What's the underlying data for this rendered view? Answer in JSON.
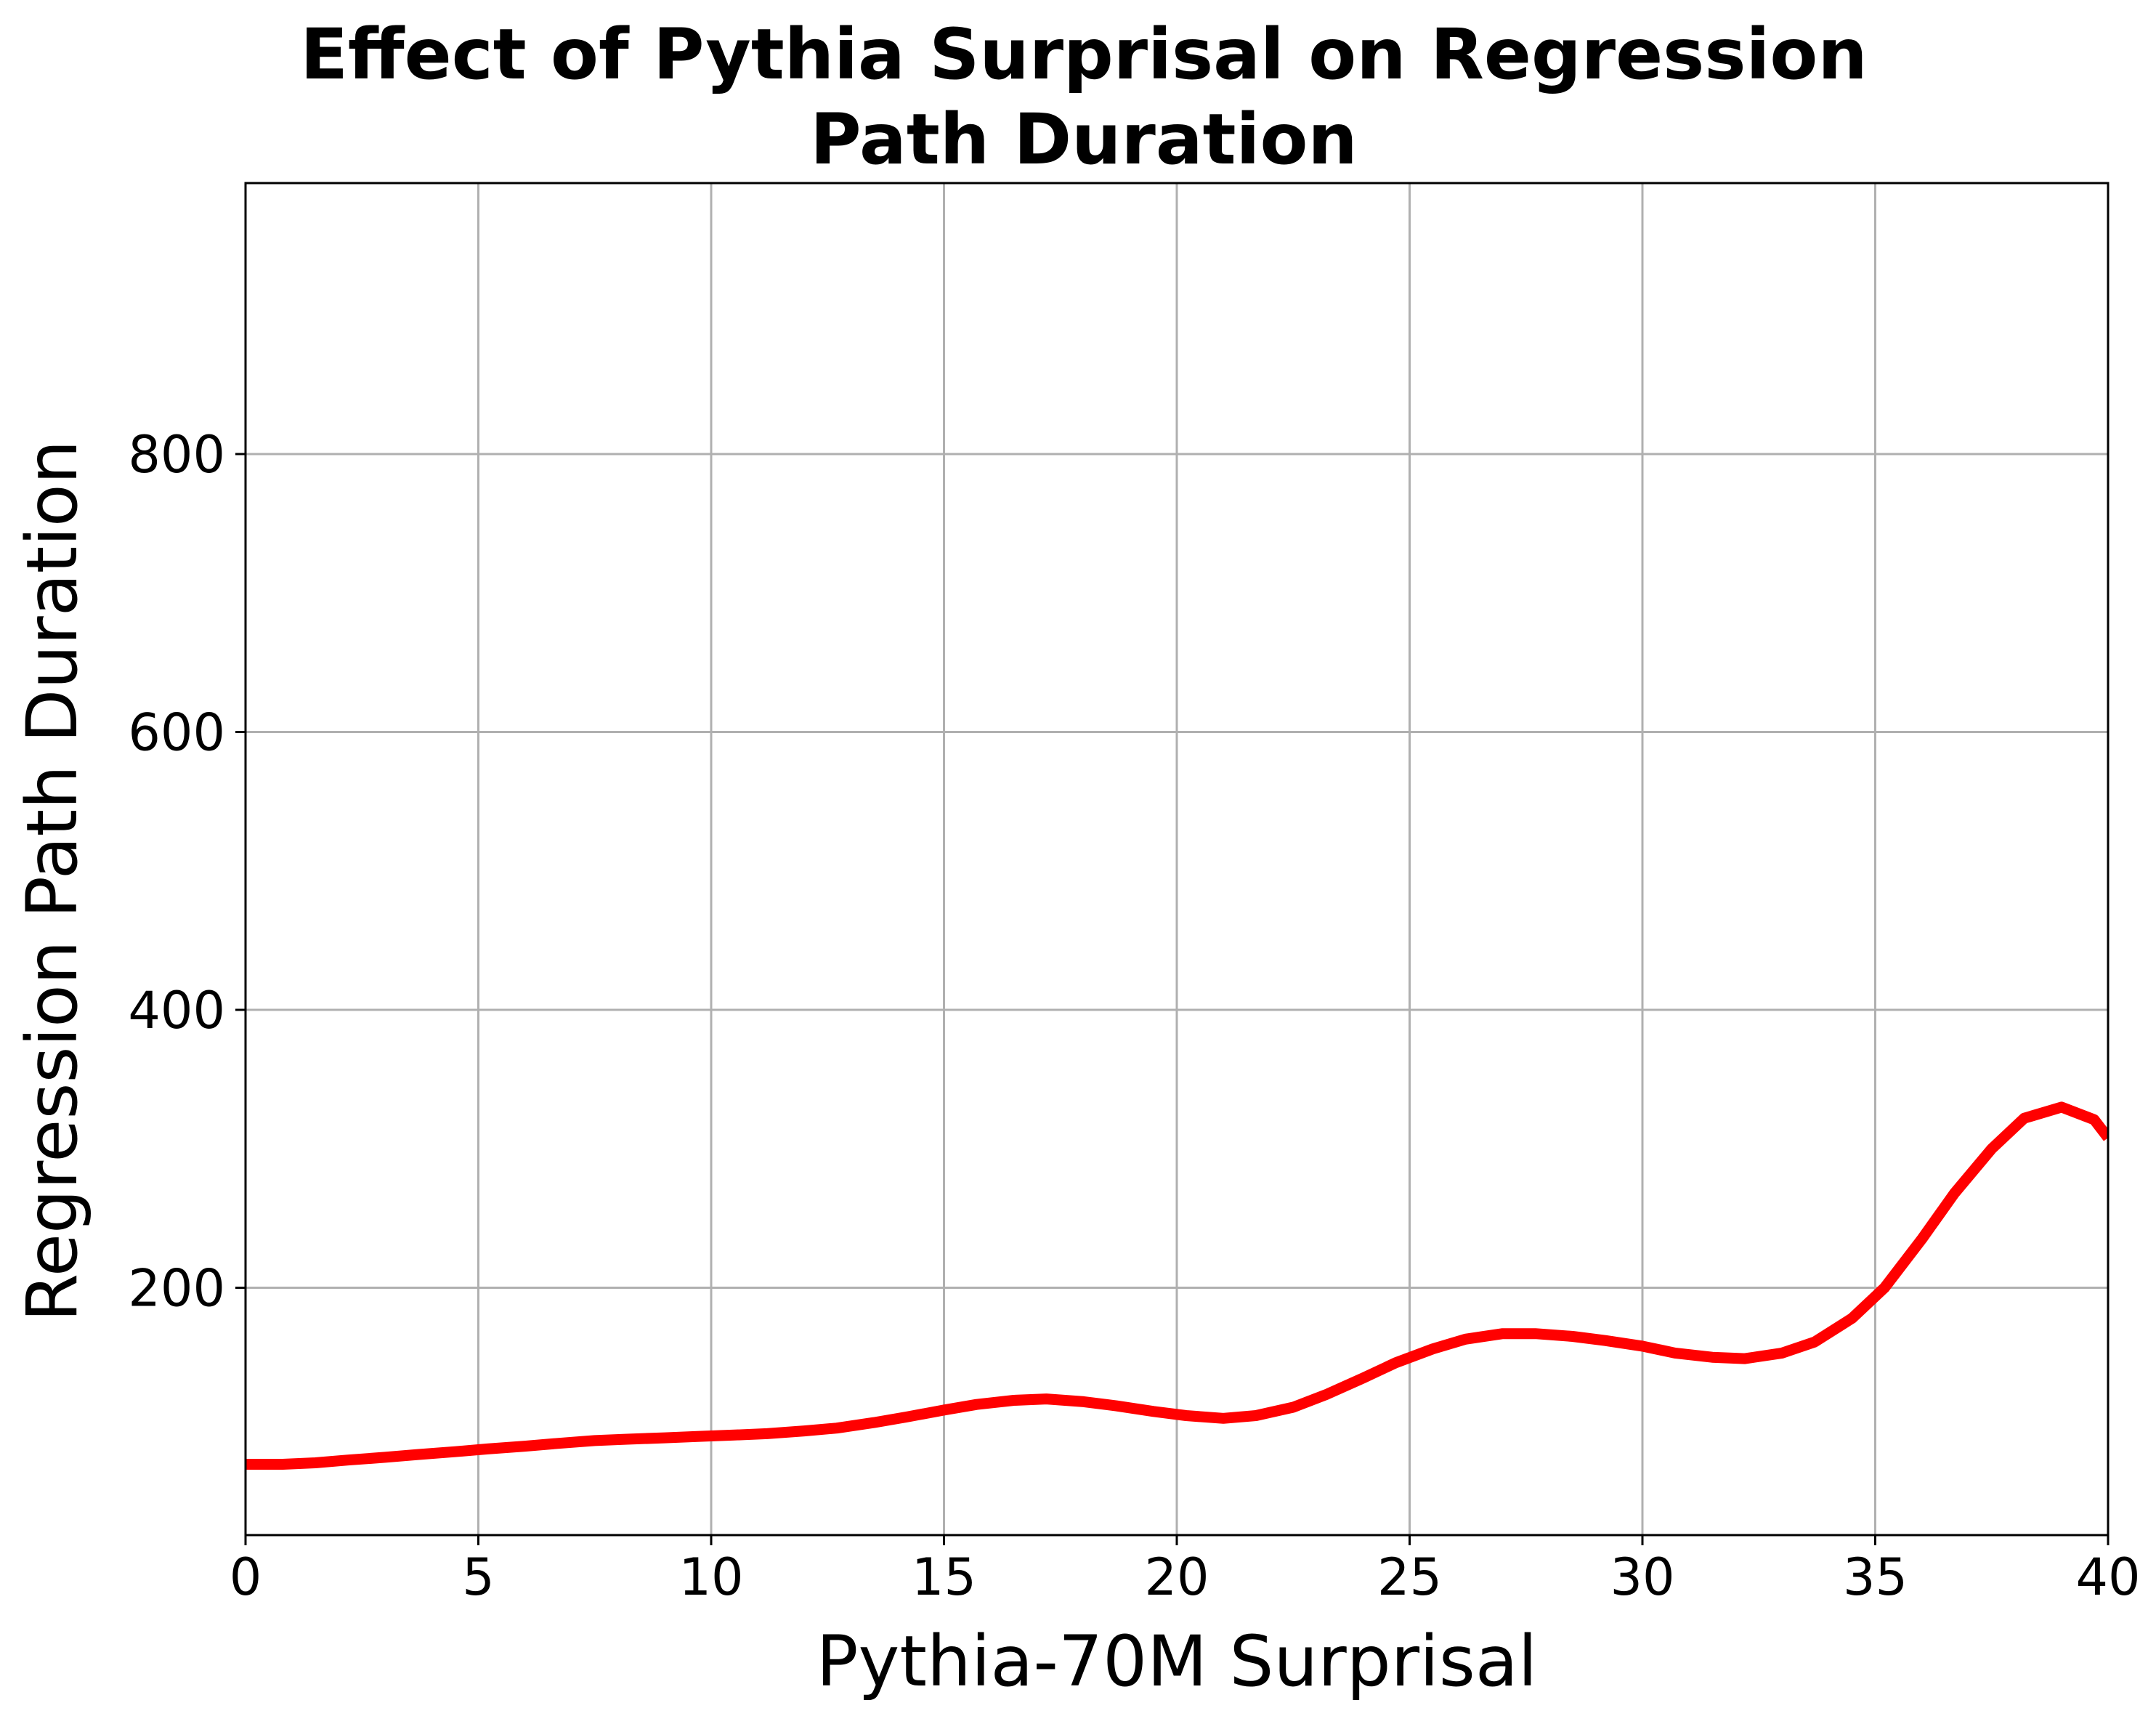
{
  "chart_data": {
    "type": "line",
    "title_lines": [
      "Effect of Pythia Surprisal on Regression",
      "Path Duration"
    ],
    "xlabel": "Pythia-70M Surprisal",
    "ylabel": "Regression Path Duration",
    "xlim": [
      0,
      40
    ],
    "ylim": [
      22,
      995
    ],
    "xticks": [
      0,
      5,
      10,
      15,
      20,
      25,
      30,
      35,
      40
    ],
    "xtick_labels": [
      "0",
      "5",
      "10",
      "15",
      "20",
      "25",
      "30",
      "35",
      "40"
    ],
    "yticks": [
      200,
      400,
      600,
      800
    ],
    "ytick_labels": [
      "200",
      "400",
      "600",
      "800"
    ],
    "grid": true,
    "legend": "none",
    "series": [
      {
        "color": "#ff0000",
        "x": [
          0,
          0.8,
          1.5,
          2.2,
          3,
          3.7,
          4.5,
          5.2,
          6,
          6.7,
          7.5,
          8.2,
          9,
          9.7,
          10.5,
          11.2,
          12,
          12.7,
          13.5,
          14.2,
          15,
          15.7,
          16.5,
          17.2,
          18,
          18.7,
          19.5,
          20.2,
          21,
          21.7,
          22.5,
          23.2,
          24,
          24.7,
          25.5,
          26.2,
          27,
          27.7,
          28.5,
          29.2,
          30,
          30.7,
          31.5,
          32.2,
          33,
          33.7,
          34.5,
          35.2,
          36,
          36.7,
          37.5,
          38.2,
          39,
          39.7,
          40
        ],
        "y": [
          73,
          73,
          74,
          76,
          78,
          80,
          82,
          84,
          86,
          88,
          90,
          91,
          92,
          93,
          94,
          95,
          97,
          99,
          103,
          107,
          112,
          116,
          119,
          120,
          118,
          115,
          111,
          108,
          106,
          108,
          114,
          123,
          135,
          146,
          156,
          163,
          167,
          167,
          165,
          162,
          158,
          153,
          150,
          149,
          153,
          161,
          178,
          200,
          235,
          268,
          300,
          322,
          330,
          321,
          308
        ]
      }
    ]
  }
}
